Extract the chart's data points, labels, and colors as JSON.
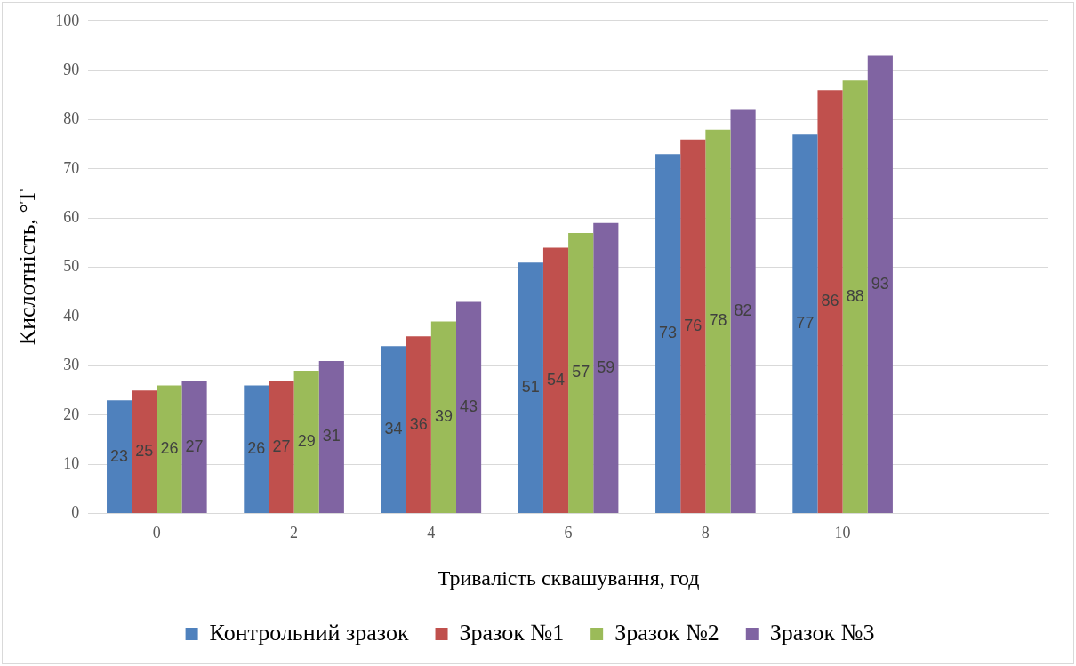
{
  "chart_data": {
    "type": "bar",
    "xlabel": "Тривалість сквашування, год",
    "ylabel": "Кислотність, °T",
    "categories": [
      "0",
      "2",
      "4",
      "6",
      "8",
      "10",
      null
    ],
    "series": [
      {
        "name": "Контрольний зразок",
        "color": "#4f81bd",
        "values": [
          23,
          26,
          34,
          51,
          73,
          77,
          null
        ]
      },
      {
        "name": "Зразок №1",
        "color": "#c0504d",
        "values": [
          25,
          27,
          36,
          54,
          76,
          86,
          null
        ]
      },
      {
        "name": "Зразок №2",
        "color": "#9bbb59",
        "values": [
          26,
          29,
          39,
          57,
          78,
          88,
          null
        ]
      },
      {
        "name": "Зразок №3",
        "color": "#8064a2",
        "values": [
          27,
          31,
          43,
          59,
          82,
          93,
          null
        ]
      }
    ],
    "ylim": [
      0,
      100
    ],
    "yticks": [
      0,
      10,
      20,
      30,
      40,
      50,
      60,
      70,
      80,
      90,
      100
    ],
    "grid": "y",
    "legend": "bottom",
    "data_labels": true
  }
}
